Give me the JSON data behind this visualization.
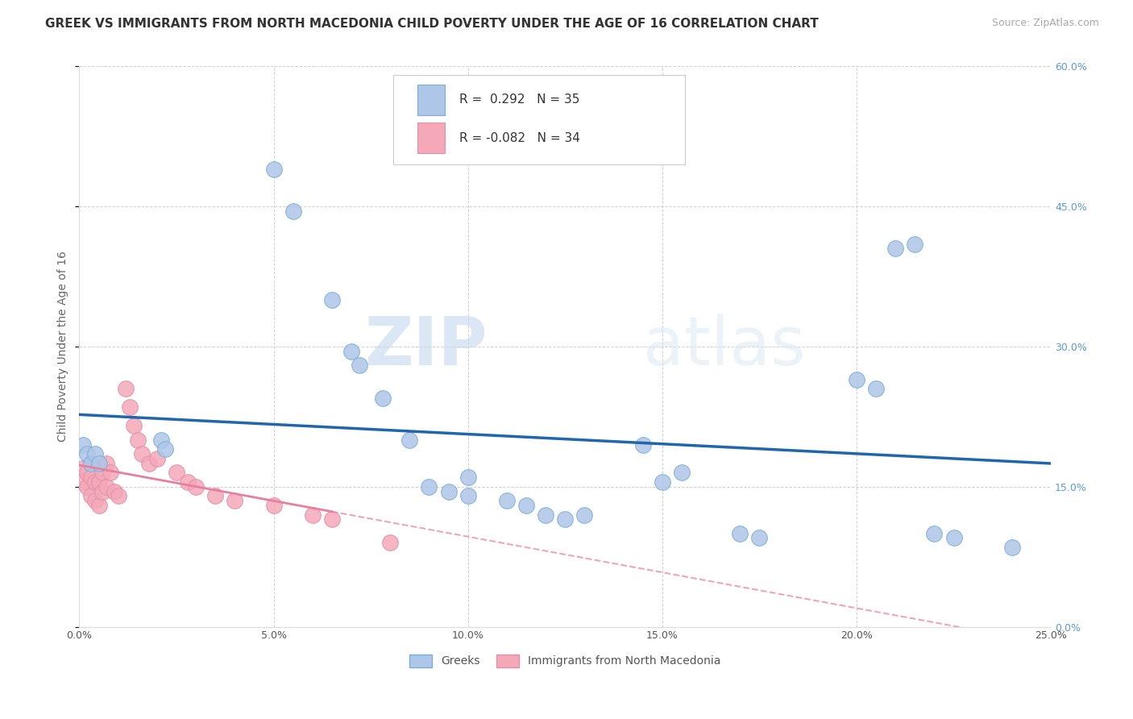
{
  "title": "GREEK VS IMMIGRANTS FROM NORTH MACEDONIA CHILD POVERTY UNDER THE AGE OF 16 CORRELATION CHART",
  "source": "Source: ZipAtlas.com",
  "ylabel": "Child Poverty Under the Age of 16",
  "xlabel_ticks": [
    "0.0%",
    "5.0%",
    "10.0%",
    "15.0%",
    "20.0%",
    "25.0%"
  ],
  "xlabel_vals": [
    0.0,
    0.05,
    0.1,
    0.15,
    0.2,
    0.25
  ],
  "ylabel_ticks": [
    "0.0%",
    "15.0%",
    "30.0%",
    "45.0%",
    "60.0%"
  ],
  "ylabel_vals": [
    0.0,
    0.15,
    0.3,
    0.45,
    0.6
  ],
  "xlim": [
    0.0,
    0.25
  ],
  "ylim": [
    0.0,
    0.6
  ],
  "blue_R": "0.292",
  "blue_N": "35",
  "pink_R": "-0.082",
  "pink_N": "34",
  "blue_color": "#aec6e8",
  "pink_color": "#f4a8b8",
  "blue_line_color": "#2166ac",
  "pink_line_color": "#e87fa0",
  "legend_label_blue": "Greeks",
  "legend_label_pink": "Immigrants from North Macedonia",
  "watermark_zip": "ZIP",
  "watermark_atlas": "atlas",
  "blue_scatter_x": [
    0.001,
    0.002,
    0.003,
    0.004,
    0.005,
    0.021,
    0.022,
    0.05,
    0.055,
    0.065,
    0.07,
    0.072,
    0.078,
    0.085,
    0.09,
    0.095,
    0.1,
    0.1,
    0.11,
    0.115,
    0.12,
    0.125,
    0.13,
    0.145,
    0.15,
    0.155,
    0.17,
    0.175,
    0.2,
    0.205,
    0.21,
    0.215,
    0.22,
    0.225,
    0.24
  ],
  "blue_scatter_y": [
    0.195,
    0.185,
    0.175,
    0.185,
    0.175,
    0.2,
    0.19,
    0.49,
    0.445,
    0.35,
    0.295,
    0.28,
    0.245,
    0.2,
    0.15,
    0.145,
    0.14,
    0.16,
    0.135,
    0.13,
    0.12,
    0.115,
    0.12,
    0.195,
    0.155,
    0.165,
    0.1,
    0.095,
    0.265,
    0.255,
    0.405,
    0.41,
    0.1,
    0.095,
    0.085
  ],
  "pink_scatter_x": [
    0.001,
    0.001,
    0.002,
    0.002,
    0.003,
    0.003,
    0.003,
    0.004,
    0.004,
    0.005,
    0.005,
    0.006,
    0.006,
    0.007,
    0.007,
    0.008,
    0.009,
    0.01,
    0.012,
    0.013,
    0.014,
    0.015,
    0.016,
    0.018,
    0.02,
    0.025,
    0.028,
    0.03,
    0.035,
    0.04,
    0.05,
    0.06,
    0.065,
    0.08
  ],
  "pink_scatter_y": [
    0.17,
    0.155,
    0.165,
    0.15,
    0.175,
    0.16,
    0.14,
    0.155,
    0.135,
    0.155,
    0.13,
    0.165,
    0.145,
    0.175,
    0.15,
    0.165,
    0.145,
    0.14,
    0.255,
    0.235,
    0.215,
    0.2,
    0.185,
    0.175,
    0.18,
    0.165,
    0.155,
    0.15,
    0.14,
    0.135,
    0.13,
    0.12,
    0.115,
    0.09
  ],
  "background_color": "#ffffff",
  "grid_color": "#cccccc",
  "title_fontsize": 11,
  "axis_label_fontsize": 10,
  "tick_fontsize": 9,
  "legend_fontsize": 11
}
